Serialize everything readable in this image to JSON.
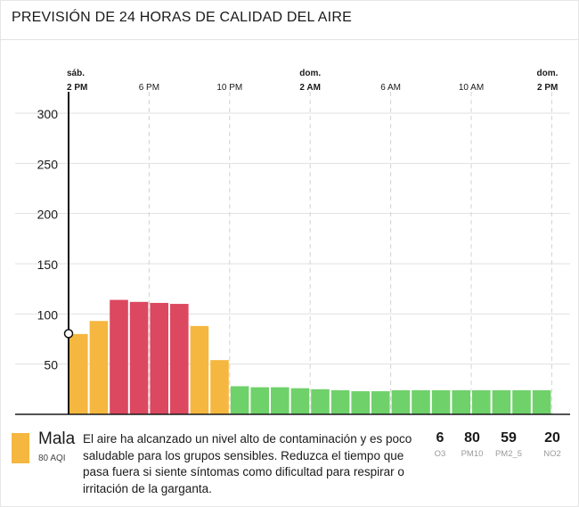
{
  "header": {
    "title": "PREVISIÓN DE 24 HORAS DE CALIDAD DEL AIRE"
  },
  "chart_data": {
    "type": "bar",
    "title": "PREVISIÓN DE 24 HORAS DE CALIDAD DEL AIRE",
    "ylim": [
      0,
      300
    ],
    "yticks": [
      "300",
      "250",
      "200",
      "150",
      "100",
      "50"
    ],
    "ytick_values": [
      300,
      250,
      200,
      150,
      100,
      50
    ],
    "xticks": [
      {
        "day": "sáb.",
        "label": "2 PM",
        "index": 0,
        "bold": true
      },
      {
        "day": "",
        "label": "6 PM",
        "index": 4,
        "bold": false
      },
      {
        "day": "",
        "label": "10 PM",
        "index": 8,
        "bold": false
      },
      {
        "day": "dom.",
        "label": "2 AM",
        "index": 12,
        "bold": true
      },
      {
        "day": "",
        "label": "6 AM",
        "index": 16,
        "bold": false
      },
      {
        "day": "",
        "label": "10 AM",
        "index": 20,
        "bold": false
      },
      {
        "day": "dom.",
        "label": "2 PM",
        "index": 24,
        "bold": true
      }
    ],
    "values": [
      80,
      93,
      114,
      112,
      111,
      110,
      88,
      54,
      28,
      27,
      27,
      26,
      25,
      24,
      23,
      23,
      24,
      24,
      24,
      24,
      24,
      24,
      24,
      24
    ],
    "colors": [
      "#f5b73f",
      "#f5b73f",
      "#db4860",
      "#db4860",
      "#db4860",
      "#db4860",
      "#f5b73f",
      "#f5b73f",
      "#6fd16a",
      "#6fd16a",
      "#6fd16a",
      "#6fd16a",
      "#6fd16a",
      "#6fd16a",
      "#6fd16a",
      "#6fd16a",
      "#6fd16a",
      "#6fd16a",
      "#6fd16a",
      "#6fd16a",
      "#6fd16a",
      "#6fd16a",
      "#6fd16a",
      "#6fd16a"
    ],
    "current_value": 80,
    "grid": true
  },
  "summary": {
    "color": "#f5b73f",
    "level": "Mala",
    "aqi_label": "80 AQI",
    "advice": "El aire ha alcanzado un nivel alto de contaminación y es poco saludable para los grupos sensibles. Reduzca el tiempo que pasa fuera si siente síntomas como dificultad para respirar o irritación de la garganta."
  },
  "pollutants": [
    {
      "value": "6",
      "name": "O3"
    },
    {
      "value": "80",
      "name": "PM10"
    },
    {
      "value": "59",
      "name": "PM2_5"
    },
    {
      "value": "20",
      "name": "NO2"
    }
  ]
}
